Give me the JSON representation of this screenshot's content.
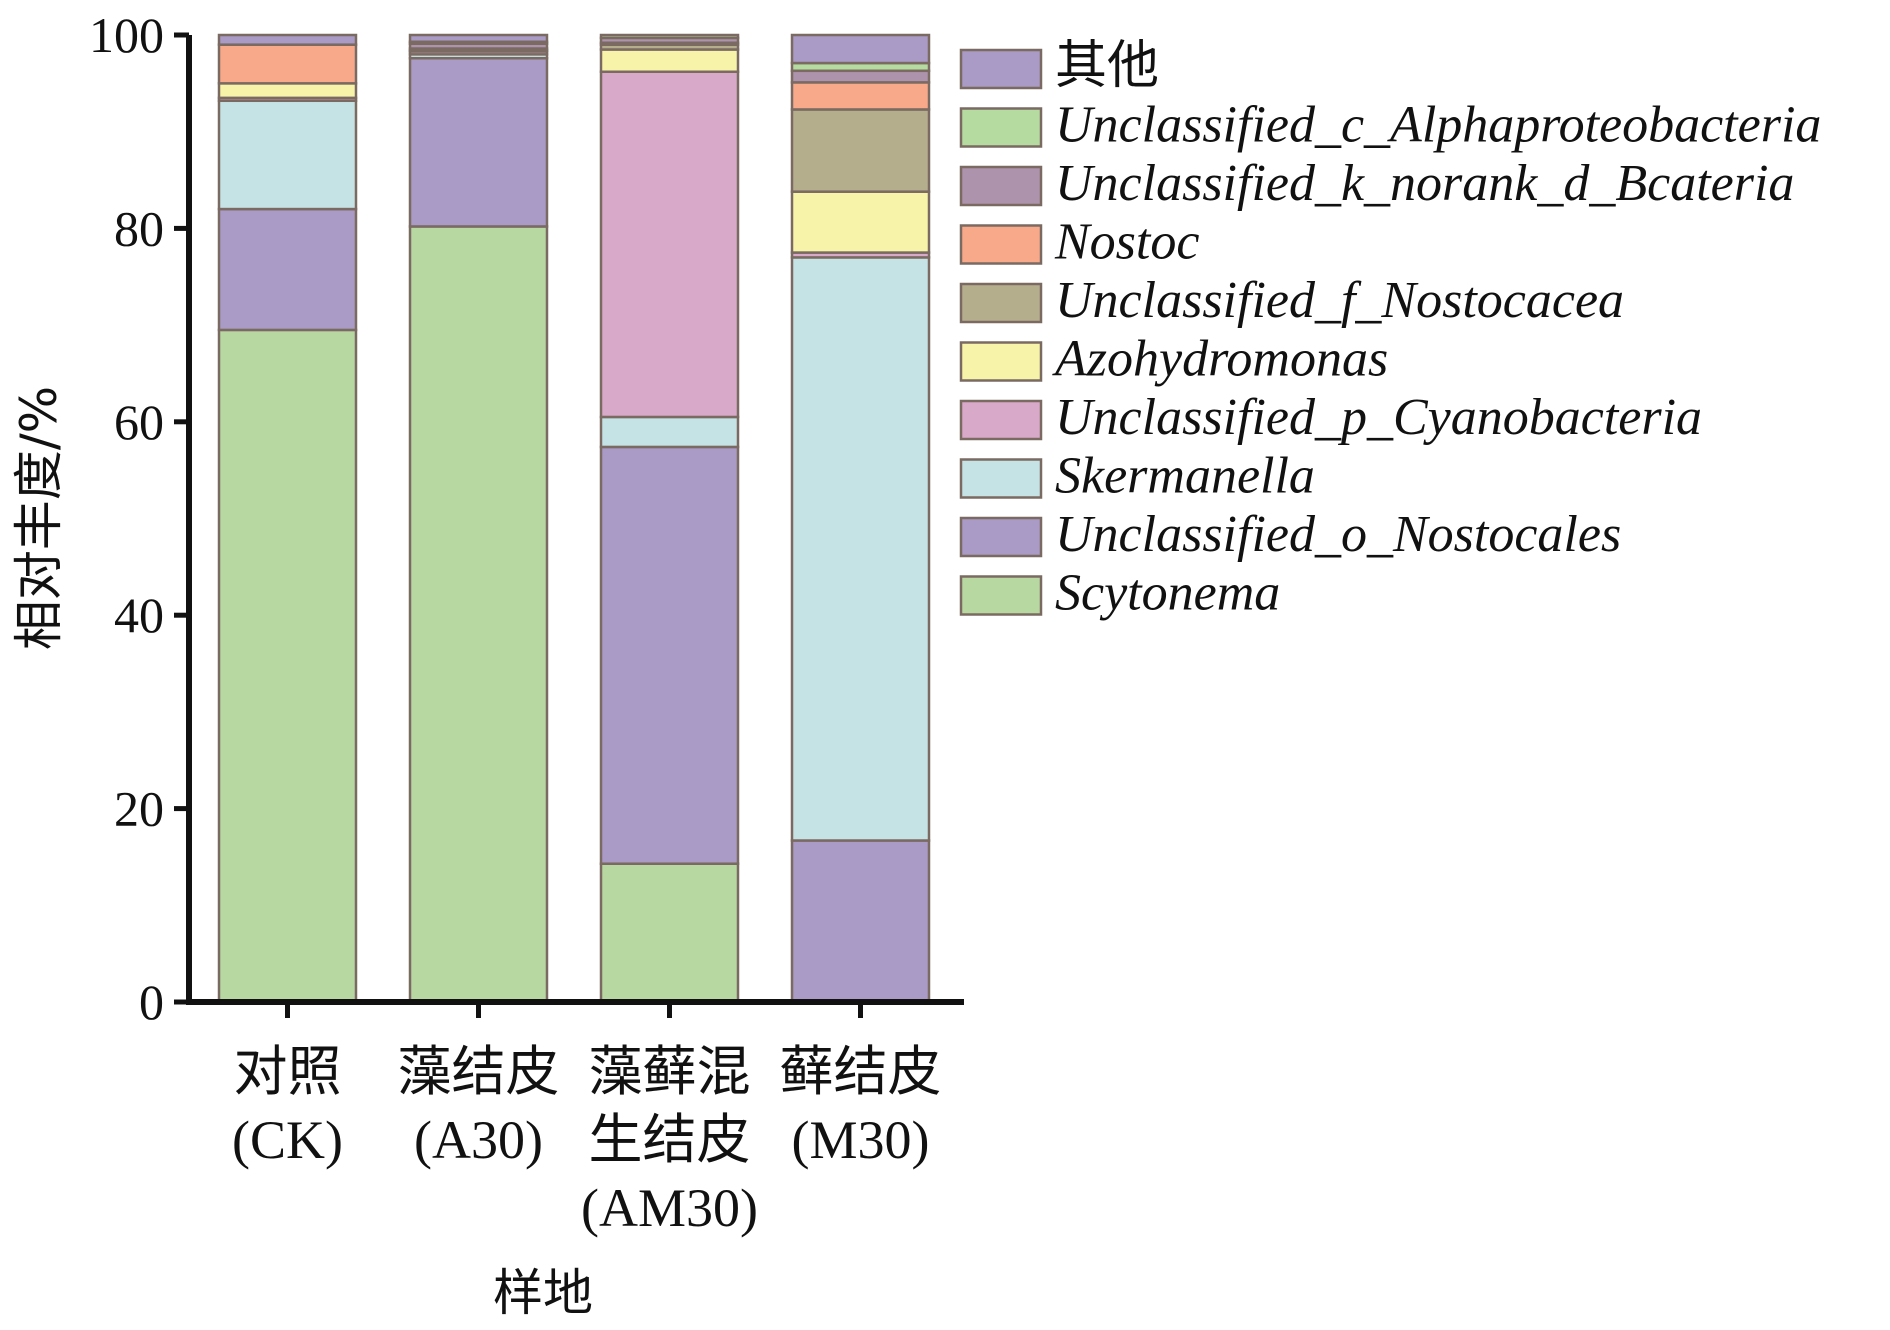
{
  "chart_data": {
    "type": "bar",
    "stacked": true,
    "ylabel": "相对丰度/%",
    "xlabel": "样地",
    "ylim": [
      0,
      100
    ],
    "yticks": [
      0,
      20,
      40,
      60,
      80,
      100
    ],
    "legend_position": "right",
    "categories": [
      [
        "对照",
        "(CK)"
      ],
      [
        "藻结皮",
        "(A30)"
      ],
      [
        "藻藓混",
        "生结皮",
        "(AM30)"
      ],
      [
        "藓结皮",
        "(M30)"
      ]
    ],
    "series": [
      {
        "name": "Scytonema",
        "color": "#b8d8a1",
        "values": [
          69.5,
          80.2,
          14.3,
          0.0
        ]
      },
      {
        "name": "Unclassified_o_Nostocales",
        "color": "#a99ac6",
        "values": [
          12.5,
          17.4,
          43.1,
          16.7
        ]
      },
      {
        "name": "Skermanella",
        "color": "#c5e2e4",
        "values": [
          11.2,
          0.4,
          3.1,
          60.3
        ]
      },
      {
        "name": "Unclassified_p_Cyanobacteria",
        "color": "#d8a9c8",
        "values": [
          0.3,
          0.3,
          35.7,
          0.5
        ]
      },
      {
        "name": "Azohydromonas",
        "color": "#f7f3a8",
        "values": [
          1.5,
          0.1,
          2.3,
          6.3
        ]
      },
      {
        "name": "Unclassified_f_Nostocacea",
        "color": "#b5ae8c",
        "values": [
          0.0,
          0.0,
          0.5,
          8.5
        ]
      },
      {
        "name": "Nostoc",
        "color": "#f7a98a",
        "values": [
          4.0,
          0.2,
          0.2,
          2.8
        ]
      },
      {
        "name": "Unclassified_k_norank_d_Bcateria",
        "color": "#ad93ab",
        "values": [
          0.0,
          0.5,
          0.5,
          1.2
        ]
      },
      {
        "name": "Unclassified_c_Alphaproteobacteria",
        "color": "#b5dba0",
        "values": [
          0.0,
          0.2,
          0.3,
          0.8
        ]
      },
      {
        "name": "其他",
        "color": "#a99ac6",
        "values": [
          1.0,
          0.7,
          0.0,
          2.9
        ]
      }
    ]
  }
}
